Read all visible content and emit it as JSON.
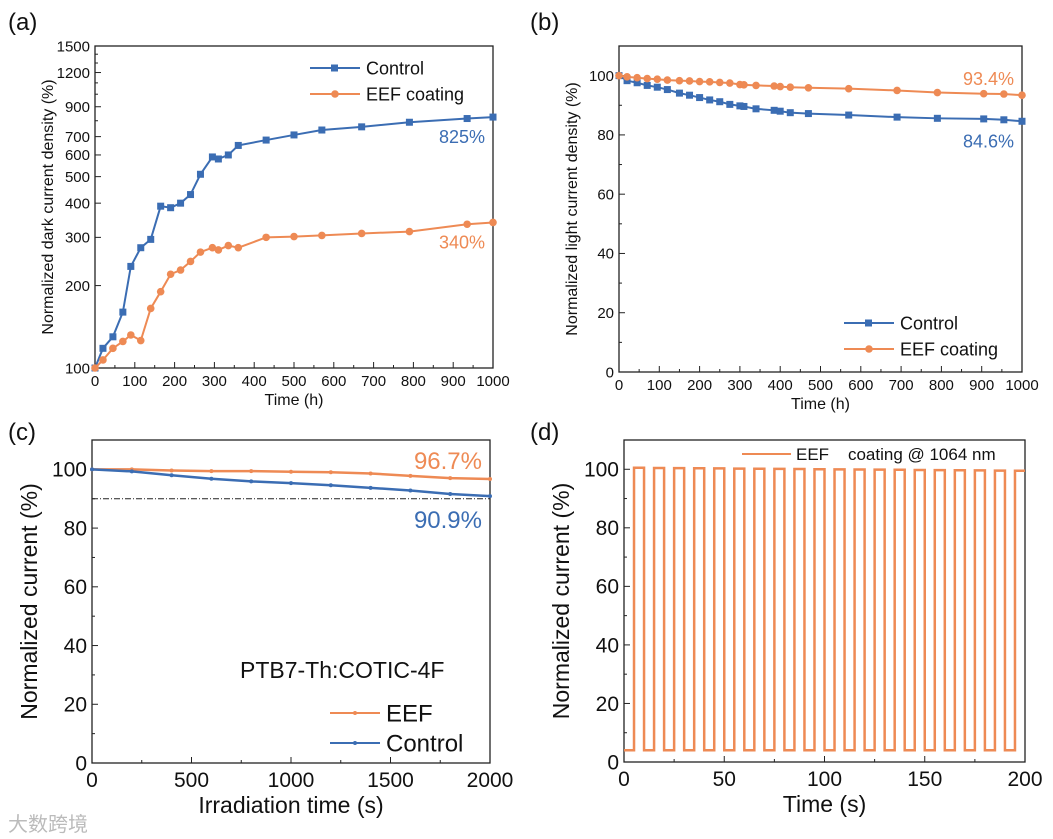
{
  "colors": {
    "control": "#3b6db3",
    "eef": "#ee8a54"
  },
  "watermark": "大数跨境",
  "chart_data": [
    {
      "type": "line",
      "panel": "(a)",
      "xlabel": "Time (h)",
      "ylabel": "Normalized dark current density (%)",
      "yscale": "log",
      "xlim": [
        0,
        1000
      ],
      "ylim": [
        100,
        1500
      ],
      "xticks": [
        0,
        100,
        200,
        300,
        400,
        500,
        600,
        700,
        800,
        900,
        1000
      ],
      "yticks": [
        100,
        200,
        300,
        400,
        500,
        600,
        700,
        900,
        1200,
        1500
      ],
      "legend": "top-right",
      "series": [
        {
          "name": "Control",
          "marker": "square",
          "x": [
            0,
            20,
            45,
            70,
            90,
            115,
            140,
            165,
            190,
            215,
            240,
            265,
            295,
            310,
            335,
            360,
            430,
            500,
            570,
            670,
            790,
            935,
            1000
          ],
          "y": [
            100,
            118,
            130,
            160,
            235,
            275,
            295,
            390,
            385,
            400,
            430,
            510,
            590,
            580,
            600,
            650,
            680,
            710,
            740,
            760,
            790,
            815,
            825
          ]
        },
        {
          "name": "EEF coating",
          "marker": "circle",
          "x": [
            0,
            20,
            45,
            70,
            90,
            115,
            140,
            165,
            190,
            215,
            240,
            265,
            295,
            310,
            335,
            360,
            430,
            500,
            570,
            670,
            790,
            935,
            1000
          ],
          "y": [
            100,
            107,
            118,
            125,
            132,
            126,
            165,
            190,
            220,
            228,
            245,
            265,
            275,
            270,
            280,
            275,
            300,
            302,
            305,
            310,
            315,
            335,
            340
          ]
        }
      ],
      "annotations": [
        {
          "text": "825%",
          "series": "Control"
        },
        {
          "text": "340%",
          "series": "EEF coating"
        }
      ]
    },
    {
      "type": "line",
      "panel": "(b)",
      "xlabel": "Time (h)",
      "ylabel": "Normalized light current density (%)",
      "xlim": [
        0,
        1000
      ],
      "ylim": [
        0,
        110
      ],
      "xticks": [
        0,
        100,
        200,
        300,
        400,
        500,
        600,
        700,
        800,
        900,
        1000
      ],
      "yticks": [
        0,
        20,
        40,
        60,
        80,
        100
      ],
      "legend": "bottom-right",
      "series": [
        {
          "name": "Control",
          "marker": "square",
          "x": [
            0,
            20,
            45,
            70,
            95,
            120,
            150,
            175,
            200,
            225,
            250,
            275,
            300,
            310,
            340,
            385,
            400,
            425,
            470,
            570,
            690,
            790,
            905,
            955,
            1000
          ],
          "y": [
            100,
            98.3,
            97.6,
            96.7,
            96.1,
            95.3,
            94.1,
            93.4,
            92.6,
            91.8,
            91.2,
            90.3,
            89.8,
            89.6,
            88.8,
            88.3,
            88.0,
            87.5,
            87.2,
            86.7,
            86.0,
            85.6,
            85.4,
            85.1,
            84.6
          ]
        },
        {
          "name": "EEF coating",
          "marker": "circle",
          "x": [
            0,
            20,
            45,
            70,
            95,
            120,
            150,
            175,
            200,
            225,
            250,
            275,
            300,
            310,
            340,
            385,
            400,
            425,
            470,
            570,
            690,
            790,
            905,
            955,
            1000
          ],
          "y": [
            100,
            99.6,
            99.3,
            99.0,
            98.8,
            98.5,
            98.3,
            98.2,
            98.0,
            97.9,
            97.7,
            97.5,
            97.0,
            96.9,
            96.7,
            96.5,
            96.3,
            96.1,
            95.9,
            95.6,
            95.0,
            94.3,
            93.9,
            93.8,
            93.4
          ]
        }
      ],
      "annotations": [
        {
          "text": "93.4%",
          "series": "EEF coating"
        },
        {
          "text": "84.6%",
          "series": "Control"
        }
      ]
    },
    {
      "type": "line",
      "panel": "(c)",
      "xlabel": "Irradiation time (s)",
      "ylabel": "Normalized current (%)",
      "xlim": [
        0,
        2000
      ],
      "ylim": [
        0,
        110
      ],
      "xticks": [
        0,
        500,
        1000,
        1500,
        2000
      ],
      "yticks": [
        0,
        20,
        40,
        60,
        80,
        100
      ],
      "legend": "bottom-right",
      "sample": "PTB7-Th:COTIC-4F",
      "reference_line": 90,
      "series": [
        {
          "name": "EEF",
          "marker": "small-dot",
          "x": [
            0,
            200,
            400,
            600,
            800,
            1000,
            1200,
            1400,
            1600,
            1800,
            2000
          ],
          "y": [
            100,
            100,
            99.6,
            99.4,
            99.4,
            99.2,
            99.0,
            98.6,
            97.8,
            97.0,
            96.7
          ]
        },
        {
          "name": "Control",
          "marker": "small-dot",
          "x": [
            0,
            200,
            400,
            600,
            800,
            1000,
            1200,
            1400,
            1600,
            1800,
            2000
          ],
          "y": [
            100,
            99.3,
            98.0,
            96.8,
            95.9,
            95.3,
            94.6,
            93.7,
            92.8,
            91.6,
            90.9
          ]
        }
      ],
      "annotations": [
        {
          "text": "96.7%",
          "series": "EEF"
        },
        {
          "text": "90.9%",
          "series": "Control"
        }
      ]
    },
    {
      "type": "line",
      "panel": "(d)",
      "xlabel": "Time (s)",
      "ylabel": "Normalized current (%)",
      "xlim": [
        0,
        200
      ],
      "ylim": [
        0,
        110
      ],
      "xticks": [
        0,
        50,
        100,
        150,
        200
      ],
      "yticks": [
        0,
        20,
        40,
        60,
        80,
        100
      ],
      "legend": "top-right",
      "legend_label": "EEF    coating @ 1064 nm",
      "series": [
        {
          "name": "EEF coating @ 1064 nm",
          "pulse_period_s": 10,
          "pulse_on_s": 5,
          "first_on_s": 5,
          "pulse_count": 20,
          "on_level_start": 100.5,
          "on_level_end": 99.5,
          "off_level": 4
        }
      ]
    }
  ]
}
